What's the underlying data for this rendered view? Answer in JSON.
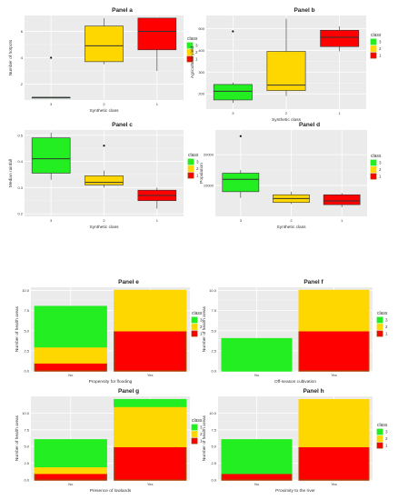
{
  "legend_title": "class",
  "classes": [
    "3",
    "2",
    "1"
  ],
  "colors": {
    "3": "#22ee22",
    "2": "#ffd700",
    "1": "#ff0000",
    "dark": "#b03a00"
  },
  "chart_data": [
    {
      "type": "box",
      "title": "Panel a",
      "xlabel": "Synthetic class",
      "ylabel": "Number of hotpots",
      "categories": [
        "3",
        "2",
        "1"
      ],
      "ylim": [
        0.8,
        7.2
      ],
      "yticks": [
        2,
        4,
        6
      ],
      "boxes": [
        {
          "q1": 1.0,
          "median": 1.0,
          "q3": 1.0,
          "lower": 1.0,
          "upper": 1.0,
          "outliers": [
            4.0
          ]
        },
        {
          "q1": 3.7,
          "median": 4.9,
          "q3": 6.4,
          "lower": 3.5,
          "upper": 7.0,
          "outliers": []
        },
        {
          "q1": 4.6,
          "median": 6.0,
          "q3": 7.0,
          "lower": 3.0,
          "upper": 7.0,
          "outliers": []
        }
      ]
    },
    {
      "type": "box",
      "title": "Panel b",
      "xlabel": "Synthetic class",
      "ylabel": "Agricultural yield",
      "categories": [
        "3",
        "2",
        "1"
      ],
      "ylim": [
        130,
        560
      ],
      "yticks": [
        200,
        300,
        400,
        500
      ],
      "boxes": [
        {
          "q1": 172,
          "median": 212,
          "q3": 243,
          "lower": 158,
          "upper": 252,
          "outliers": [
            487
          ]
        },
        {
          "q1": 215,
          "median": 240,
          "q3": 395,
          "lower": 190,
          "upper": 545,
          "outliers": []
        },
        {
          "q1": 417,
          "median": 460,
          "q3": 492,
          "lower": 395,
          "upper": 510,
          "outliers": []
        }
      ]
    },
    {
      "type": "box",
      "title": "Panel c",
      "xlabel": "Synthetic class",
      "ylabel": "Median rainfall",
      "categories": [
        "3",
        "2",
        "1"
      ],
      "ylim": [
        0.19,
        0.52
      ],
      "yticks": [
        0.2,
        0.3,
        0.4,
        0.5
      ],
      "boxes": [
        {
          "q1": 0.355,
          "median": 0.41,
          "q3": 0.49,
          "lower": 0.33,
          "upper": 0.51,
          "outliers": []
        },
        {
          "q1": 0.31,
          "median": 0.32,
          "q3": 0.345,
          "lower": 0.3,
          "upper": 0.365,
          "outliers": [
            0.46
          ]
        },
        {
          "q1": 0.25,
          "median": 0.27,
          "q3": 0.29,
          "lower": 0.22,
          "upper": 0.3,
          "outliers": []
        }
      ]
    },
    {
      "type": "box",
      "title": "Panel d",
      "xlabel": "Synthetic class",
      "ylabel": "Population",
      "categories": [
        "3",
        "2",
        "1"
      ],
      "ylim": [
        0,
        28000
      ],
      "yticks": [
        10000,
        20000
      ],
      "boxes": [
        {
          "q1": 8000,
          "median": 12000,
          "q3": 14000,
          "lower": 6000,
          "upper": 15000,
          "outliers": [
            26000
          ]
        },
        {
          "q1": 4500,
          "median": 5800,
          "q3": 7000,
          "lower": 4000,
          "upper": 8000,
          "outliers": []
        },
        {
          "q1": 3800,
          "median": 5000,
          "q3": 7000,
          "lower": 3000,
          "upper": 7500,
          "outliers": []
        }
      ]
    },
    {
      "type": "bar",
      "stacked": true,
      "title": "Panel e",
      "xlabel": "Propensity for flooding",
      "ylabel": "Number of health areas",
      "categories": [
        "No",
        "Yes"
      ],
      "ylim": [
        0,
        10.4
      ],
      "yticks": [
        0.0,
        2.5,
        5.0,
        7.5,
        10.0
      ],
      "series": [
        {
          "name": "3",
          "values": [
            5.0,
            0.0
          ]
        },
        {
          "name": "2",
          "values": [
            2.0,
            5.0
          ]
        },
        {
          "name": "1",
          "values": [
            1.0,
            5.0
          ]
        }
      ]
    },
    {
      "type": "bar",
      "stacked": true,
      "title": "Panel f",
      "xlabel": "Off-season cultivation",
      "ylabel": "Number of health areas",
      "categories": [
        "No",
        "Yes"
      ],
      "ylim": [
        0,
        10.4
      ],
      "yticks": [
        0.0,
        2.5,
        5.0,
        7.5,
        10.0
      ],
      "series": [
        {
          "name": "3",
          "values": [
            4.0,
            0.0
          ]
        },
        {
          "name": "2",
          "values": [
            0.0,
            5.0
          ]
        },
        {
          "name": "1",
          "values": [
            0.0,
            5.0
          ]
        }
      ]
    },
    {
      "type": "bar",
      "stacked": true,
      "title": "Panel g",
      "xlabel": "Presence of lowlands",
      "ylabel": "Number of health areas",
      "categories": [
        "No",
        "Yes"
      ],
      "ylim": [
        0,
        12.5
      ],
      "yticks": [
        0.0,
        2.5,
        5.0,
        7.5,
        10.0
      ],
      "series": [
        {
          "name": "3",
          "values": [
            4.0,
            1.0
          ]
        },
        {
          "name": "2",
          "values": [
            1.0,
            6.0
          ]
        },
        {
          "name": "1",
          "values": [
            1.0,
            5.0
          ]
        }
      ]
    },
    {
      "type": "bar",
      "stacked": true,
      "title": "Panel h",
      "xlabel": "Proximity to the river",
      "ylabel": "Number of health areas",
      "categories": [
        "No",
        "Yes"
      ],
      "ylim": [
        0,
        12.5
      ],
      "yticks": [
        0.0,
        2.5,
        5.0,
        7.5,
        10.0
      ],
      "series": [
        {
          "name": "3",
          "values": [
            5.0,
            0.0
          ]
        },
        {
          "name": "2",
          "values": [
            0.0,
            7.0
          ]
        },
        {
          "name": "1",
          "values": [
            1.0,
            5.0
          ]
        }
      ]
    }
  ]
}
